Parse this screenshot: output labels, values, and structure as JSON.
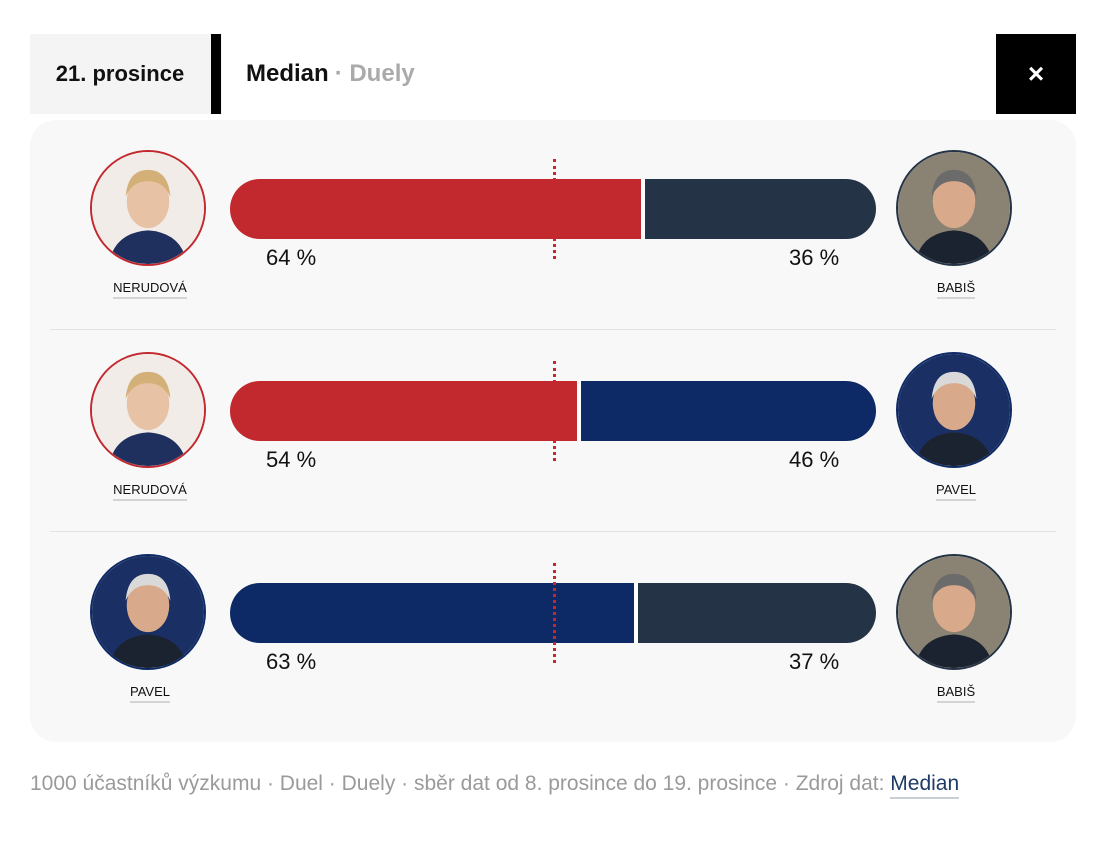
{
  "header": {
    "date": "21. prosince",
    "title": "Median",
    "subtitle": "· Duely",
    "close_icon": "×"
  },
  "colors": {
    "nerudova": "#c1292f",
    "babis": "#243345",
    "pavel": "#0e2a66",
    "midline": "#c9262e"
  },
  "chart_data": {
    "type": "bar",
    "orientation": "horizontal-stacked-100",
    "title": "",
    "duels": [
      {
        "left_name": "NERUDOVÁ",
        "left_value": 64,
        "left_label": "64 %",
        "left_color": "#c1292f",
        "right_name": "BABIŠ",
        "right_value": 36,
        "right_label": "36 %",
        "right_color": "#243345"
      },
      {
        "left_name": "NERUDOVÁ",
        "left_value": 54,
        "left_label": "54 %",
        "left_color": "#c1292f",
        "right_name": "PAVEL",
        "right_value": 46,
        "right_label": "46 %",
        "right_color": "#0e2a66"
      },
      {
        "left_name": "PAVEL",
        "left_value": 63,
        "left_label": "63 %",
        "left_color": "#0e2a66",
        "right_name": "BABIŠ",
        "right_value": 37,
        "right_label": "37 %",
        "right_color": "#243345"
      }
    ],
    "reference_line": 50
  },
  "footer": {
    "text": "1000 účastníků výzkumu · Duel · Duely · sběr dat od 8. prosince do 19. prosince · Zdroj dat: ",
    "source_link": "Median"
  }
}
